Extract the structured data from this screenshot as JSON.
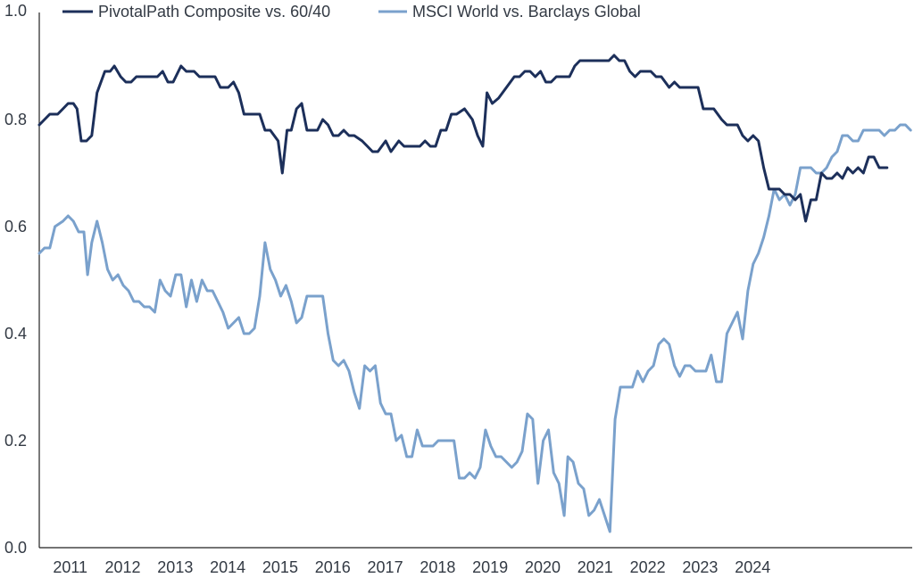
{
  "chart_data": {
    "type": "line",
    "title": "",
    "xlabel": "",
    "ylabel": "",
    "ylim": [
      0.0,
      1.0
    ],
    "y_ticks": [
      "0.0",
      "0.2",
      "0.4",
      "0.6",
      "0.8",
      "1.0"
    ],
    "x_ticks": [
      "2011",
      "2012",
      "2013",
      "2014",
      "2015",
      "2016",
      "2017",
      "2018",
      "2019",
      "2020",
      "2021",
      "2022",
      "2023",
      "2024"
    ],
    "grid": false,
    "legend_position": "top",
    "series": [
      {
        "name": "PivotalPath Composite vs. 60/40",
        "color": "#1c2f5a",
        "points": [
          [
            2010.75,
            0.79
          ],
          [
            2010.85,
            0.8
          ],
          [
            2010.95,
            0.81
          ],
          [
            2011.1,
            0.81
          ],
          [
            2011.2,
            0.82
          ],
          [
            2011.3,
            0.83
          ],
          [
            2011.4,
            0.83
          ],
          [
            2011.47,
            0.82
          ],
          [
            2011.55,
            0.76
          ],
          [
            2011.65,
            0.76
          ],
          [
            2011.75,
            0.77
          ],
          [
            2011.85,
            0.85
          ],
          [
            2012.0,
            0.89
          ],
          [
            2012.1,
            0.89
          ],
          [
            2012.18,
            0.9
          ],
          [
            2012.3,
            0.88
          ],
          [
            2012.4,
            0.87
          ],
          [
            2012.5,
            0.87
          ],
          [
            2012.6,
            0.88
          ],
          [
            2013.0,
            0.88
          ],
          [
            2013.1,
            0.89
          ],
          [
            2013.2,
            0.87
          ],
          [
            2013.3,
            0.87
          ],
          [
            2013.45,
            0.9
          ],
          [
            2013.55,
            0.89
          ],
          [
            2013.7,
            0.89
          ],
          [
            2013.8,
            0.88
          ],
          [
            2014.1,
            0.88
          ],
          [
            2014.2,
            0.86
          ],
          [
            2014.35,
            0.86
          ],
          [
            2014.45,
            0.87
          ],
          [
            2014.55,
            0.85
          ],
          [
            2014.65,
            0.81
          ],
          [
            2014.95,
            0.81
          ],
          [
            2015.05,
            0.78
          ],
          [
            2015.15,
            0.78
          ],
          [
            2015.3,
            0.76
          ],
          [
            2015.38,
            0.7
          ],
          [
            2015.47,
            0.78
          ],
          [
            2015.55,
            0.78
          ],
          [
            2015.65,
            0.82
          ],
          [
            2015.75,
            0.83
          ],
          [
            2015.85,
            0.78
          ],
          [
            2016.05,
            0.78
          ],
          [
            2016.15,
            0.8
          ],
          [
            2016.25,
            0.79
          ],
          [
            2016.35,
            0.77
          ],
          [
            2016.45,
            0.77
          ],
          [
            2016.55,
            0.78
          ],
          [
            2016.65,
            0.77
          ],
          [
            2016.75,
            0.77
          ],
          [
            2016.9,
            0.76
          ],
          [
            2017.0,
            0.75
          ],
          [
            2017.1,
            0.74
          ],
          [
            2017.2,
            0.74
          ],
          [
            2017.35,
            0.76
          ],
          [
            2017.45,
            0.74
          ],
          [
            2017.6,
            0.76
          ],
          [
            2017.7,
            0.75
          ],
          [
            2018.0,
            0.75
          ],
          [
            2018.1,
            0.76
          ],
          [
            2018.2,
            0.75
          ],
          [
            2018.3,
            0.75
          ],
          [
            2018.4,
            0.78
          ],
          [
            2018.5,
            0.78
          ],
          [
            2018.6,
            0.81
          ],
          [
            2018.7,
            0.81
          ],
          [
            2018.85,
            0.82
          ],
          [
            2019.0,
            0.8
          ],
          [
            2019.1,
            0.77
          ],
          [
            2019.2,
            0.75
          ],
          [
            2019.28,
            0.85
          ],
          [
            2019.38,
            0.83
          ],
          [
            2019.5,
            0.84
          ],
          [
            2019.65,
            0.86
          ],
          [
            2019.8,
            0.88
          ],
          [
            2019.9,
            0.88
          ],
          [
            2020.0,
            0.89
          ],
          [
            2020.1,
            0.89
          ],
          [
            2020.2,
            0.88
          ],
          [
            2020.3,
            0.89
          ],
          [
            2020.4,
            0.87
          ],
          [
            2020.5,
            0.87
          ],
          [
            2020.6,
            0.88
          ],
          [
            2020.85,
            0.88
          ],
          [
            2020.95,
            0.9
          ],
          [
            2021.05,
            0.91
          ],
          [
            2021.6,
            0.91
          ],
          [
            2021.7,
            0.92
          ],
          [
            2021.8,
            0.91
          ],
          [
            2021.9,
            0.91
          ],
          [
            2022.0,
            0.89
          ],
          [
            2022.1,
            0.88
          ],
          [
            2022.2,
            0.89
          ],
          [
            2022.4,
            0.89
          ],
          [
            2022.5,
            0.88
          ],
          [
            2022.6,
            0.88
          ],
          [
            2022.75,
            0.86
          ],
          [
            2022.85,
            0.87
          ],
          [
            2022.95,
            0.86
          ],
          [
            2023.3,
            0.86
          ],
          [
            2023.4,
            0.82
          ],
          [
            2023.6,
            0.82
          ],
          [
            2023.75,
            0.8
          ],
          [
            2023.85,
            0.79
          ],
          [
            2024.05,
            0.79
          ],
          [
            2024.15,
            0.77
          ],
          [
            2024.25,
            0.76
          ],
          [
            2024.35,
            0.77
          ],
          [
            2024.45,
            0.76
          ],
          [
            2024.55,
            0.71
          ],
          [
            2024.65,
            0.67
          ],
          [
            2024.85,
            0.67
          ],
          [
            2024.95,
            0.66
          ],
          [
            2025.05,
            0.66
          ],
          [
            2025.15,
            0.65
          ],
          [
            2025.25,
            0.66
          ],
          [
            2025.35,
            0.61
          ],
          [
            2025.45,
            0.65
          ],
          [
            2025.55,
            0.65
          ],
          [
            2025.65,
            0.7
          ],
          [
            2025.75,
            0.69
          ],
          [
            2025.85,
            0.69
          ],
          [
            2025.95,
            0.7
          ],
          [
            2026.05,
            0.69
          ],
          [
            2026.15,
            0.71
          ],
          [
            2026.25,
            0.7
          ],
          [
            2026.35,
            0.71
          ],
          [
            2026.45,
            0.7
          ],
          [
            2026.55,
            0.73
          ],
          [
            2026.65,
            0.73
          ],
          [
            2026.75,
            0.71
          ],
          [
            2026.9,
            0.71
          ]
        ]
      },
      {
        "name": "MSCI World vs. Barclays Global",
        "color": "#7aa1cc",
        "points": [
          [
            2010.75,
            0.55
          ],
          [
            2010.85,
            0.56
          ],
          [
            2010.95,
            0.56
          ],
          [
            2011.05,
            0.6
          ],
          [
            2011.2,
            0.61
          ],
          [
            2011.3,
            0.62
          ],
          [
            2011.4,
            0.61
          ],
          [
            2011.5,
            0.59
          ],
          [
            2011.6,
            0.59
          ],
          [
            2011.67,
            0.51
          ],
          [
            2011.75,
            0.57
          ],
          [
            2011.85,
            0.61
          ],
          [
            2011.95,
            0.57
          ],
          [
            2012.05,
            0.52
          ],
          [
            2012.15,
            0.5
          ],
          [
            2012.25,
            0.51
          ],
          [
            2012.35,
            0.49
          ],
          [
            2012.45,
            0.48
          ],
          [
            2012.55,
            0.46
          ],
          [
            2012.65,
            0.46
          ],
          [
            2012.75,
            0.45
          ],
          [
            2012.85,
            0.45
          ],
          [
            2012.95,
            0.44
          ],
          [
            2013.05,
            0.5
          ],
          [
            2013.15,
            0.48
          ],
          [
            2013.25,
            0.47
          ],
          [
            2013.35,
            0.51
          ],
          [
            2013.45,
            0.51
          ],
          [
            2013.55,
            0.45
          ],
          [
            2013.65,
            0.5
          ],
          [
            2013.75,
            0.46
          ],
          [
            2013.85,
            0.5
          ],
          [
            2013.95,
            0.48
          ],
          [
            2014.05,
            0.48
          ],
          [
            2014.15,
            0.46
          ],
          [
            2014.25,
            0.44
          ],
          [
            2014.35,
            0.41
          ],
          [
            2014.45,
            0.42
          ],
          [
            2014.55,
            0.43
          ],
          [
            2014.65,
            0.4
          ],
          [
            2014.75,
            0.4
          ],
          [
            2014.85,
            0.41
          ],
          [
            2014.95,
            0.47
          ],
          [
            2015.05,
            0.57
          ],
          [
            2015.15,
            0.52
          ],
          [
            2015.25,
            0.5
          ],
          [
            2015.35,
            0.47
          ],
          [
            2015.45,
            0.49
          ],
          [
            2015.55,
            0.46
          ],
          [
            2015.65,
            0.42
          ],
          [
            2015.75,
            0.43
          ],
          [
            2015.85,
            0.47
          ],
          [
            2016.05,
            0.47
          ],
          [
            2016.15,
            0.47
          ],
          [
            2016.25,
            0.4
          ],
          [
            2016.35,
            0.35
          ],
          [
            2016.45,
            0.34
          ],
          [
            2016.55,
            0.35
          ],
          [
            2016.65,
            0.33
          ],
          [
            2016.75,
            0.29
          ],
          [
            2016.85,
            0.26
          ],
          [
            2016.95,
            0.34
          ],
          [
            2017.05,
            0.33
          ],
          [
            2017.15,
            0.34
          ],
          [
            2017.25,
            0.27
          ],
          [
            2017.35,
            0.25
          ],
          [
            2017.45,
            0.25
          ],
          [
            2017.55,
            0.2
          ],
          [
            2017.65,
            0.21
          ],
          [
            2017.75,
            0.17
          ],
          [
            2017.85,
            0.17
          ],
          [
            2017.95,
            0.22
          ],
          [
            2018.05,
            0.19
          ],
          [
            2018.15,
            0.19
          ],
          [
            2018.25,
            0.19
          ],
          [
            2018.35,
            0.2
          ],
          [
            2018.65,
            0.2
          ],
          [
            2018.75,
            0.13
          ],
          [
            2018.85,
            0.13
          ],
          [
            2018.95,
            0.14
          ],
          [
            2019.05,
            0.13
          ],
          [
            2019.15,
            0.15
          ],
          [
            2019.25,
            0.22
          ],
          [
            2019.35,
            0.19
          ],
          [
            2019.45,
            0.17
          ],
          [
            2019.55,
            0.17
          ],
          [
            2019.65,
            0.16
          ],
          [
            2019.75,
            0.15
          ],
          [
            2019.85,
            0.16
          ],
          [
            2019.95,
            0.18
          ],
          [
            2020.05,
            0.25
          ],
          [
            2020.15,
            0.24
          ],
          [
            2020.25,
            0.12
          ],
          [
            2020.35,
            0.2
          ],
          [
            2020.45,
            0.22
          ],
          [
            2020.55,
            0.14
          ],
          [
            2020.65,
            0.12
          ],
          [
            2020.75,
            0.06
          ],
          [
            2020.82,
            0.17
          ],
          [
            2020.92,
            0.16
          ],
          [
            2021.02,
            0.12
          ],
          [
            2021.12,
            0.11
          ],
          [
            2021.22,
            0.06
          ],
          [
            2021.32,
            0.07
          ],
          [
            2021.42,
            0.09
          ],
          [
            2021.52,
            0.06
          ],
          [
            2021.62,
            0.03
          ],
          [
            2021.72,
            0.24
          ],
          [
            2021.82,
            0.3
          ],
          [
            2021.92,
            0.3
          ],
          [
            2022.05,
            0.3
          ],
          [
            2022.15,
            0.33
          ],
          [
            2022.25,
            0.31
          ],
          [
            2022.35,
            0.33
          ],
          [
            2022.45,
            0.34
          ],
          [
            2022.55,
            0.38
          ],
          [
            2022.65,
            0.39
          ],
          [
            2022.75,
            0.38
          ],
          [
            2022.85,
            0.34
          ],
          [
            2022.95,
            0.32
          ],
          [
            2023.05,
            0.34
          ],
          [
            2023.15,
            0.34
          ],
          [
            2023.25,
            0.33
          ],
          [
            2023.45,
            0.33
          ],
          [
            2023.55,
            0.36
          ],
          [
            2023.65,
            0.31
          ],
          [
            2023.75,
            0.31
          ],
          [
            2023.85,
            0.4
          ],
          [
            2023.95,
            0.42
          ],
          [
            2024.05,
            0.44
          ],
          [
            2024.15,
            0.39
          ],
          [
            2024.25,
            0.48
          ],
          [
            2024.35,
            0.53
          ],
          [
            2024.45,
            0.55
          ],
          [
            2024.55,
            0.58
          ],
          [
            2024.65,
            0.62
          ],
          [
            2024.75,
            0.67
          ],
          [
            2024.85,
            0.65
          ],
          [
            2024.95,
            0.66
          ],
          [
            2025.05,
            0.64
          ],
          [
            2025.15,
            0.66
          ],
          [
            2025.25,
            0.71
          ],
          [
            2025.45,
            0.71
          ],
          [
            2025.55,
            0.7
          ],
          [
            2025.65,
            0.7
          ],
          [
            2025.75,
            0.71
          ],
          [
            2025.85,
            0.73
          ],
          [
            2025.95,
            0.74
          ],
          [
            2026.05,
            0.77
          ],
          [
            2026.15,
            0.77
          ],
          [
            2026.25,
            0.76
          ],
          [
            2026.35,
            0.76
          ],
          [
            2026.45,
            0.78
          ],
          [
            2026.75,
            0.78
          ],
          [
            2026.85,
            0.77
          ],
          [
            2026.95,
            0.78
          ],
          [
            2027.05,
            0.78
          ],
          [
            2027.15,
            0.79
          ],
          [
            2027.25,
            0.79
          ],
          [
            2027.35,
            0.78
          ]
        ]
      }
    ]
  }
}
